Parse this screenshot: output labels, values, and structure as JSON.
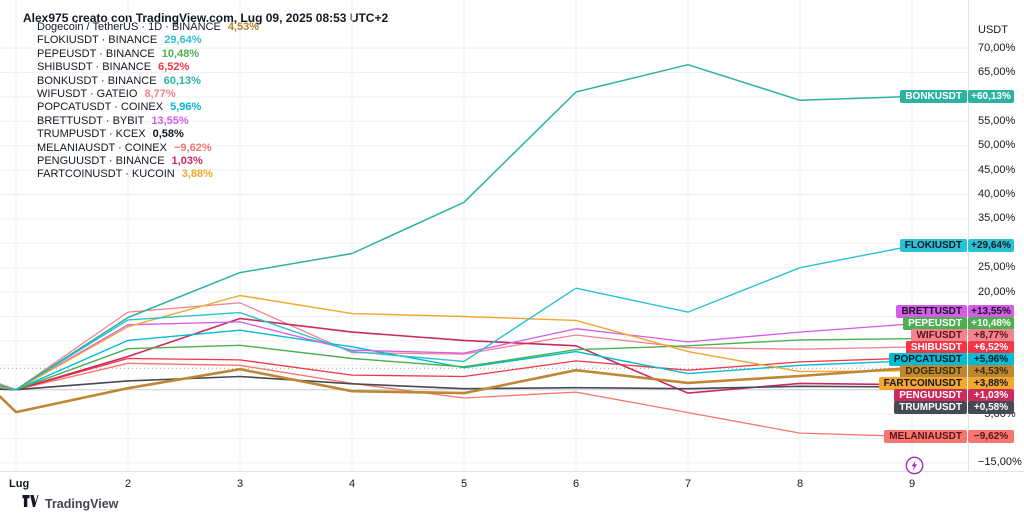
{
  "header": {
    "title": "Alex975 creato con TradingView.com, Lug 09, 2025 08:53 UTC+2"
  },
  "legend": [
    {
      "symbol": "Dogecoin / TetherUS · 1D · BINANCE",
      "change": "4,53%",
      "color": "#b8822b"
    },
    {
      "symbol": "FLOKIUSDT · BINANCE",
      "change": "29,64%",
      "color": "#2ac2d2"
    },
    {
      "symbol": "PEPEUSDT · BINANCE",
      "change": "10,48%",
      "color": "#4caf50"
    },
    {
      "symbol": "SHIBUSDT · BINANCE",
      "change": "6,52%",
      "color": "#f23645"
    },
    {
      "symbol": "BONKUSDT · BINANCE",
      "change": "60,13%",
      "color": "#2cb2a0"
    },
    {
      "symbol": "WIFUSDT · GATEIO",
      "change": "8,77%",
      "color": "#f2838f"
    },
    {
      "symbol": "POPCATUSDT · COINEX",
      "change": "5,96%",
      "color": "#00bcd4"
    },
    {
      "symbol": "BRETTUSDT · BYBIT",
      "change": "13,55%",
      "color": "#d45ce8"
    },
    {
      "symbol": "TRUMPUSDT · KCEX",
      "change": "0,58%",
      "color": "#131722"
    },
    {
      "symbol": "MELANIAUSDT · COINEX",
      "change": "−9,62%",
      "color": "#f5766e"
    },
    {
      "symbol": "PENGUUSDT · BINANCE",
      "change": "1,03%",
      "color": "#cb2b5c"
    },
    {
      "symbol": "FARTCOINUSDT · KUCOIN",
      "change": "3,88%",
      "color": "#f2a72e"
    }
  ],
  "chart_data": {
    "type": "line",
    "unit": "USDT",
    "x_categories": [
      "Lug",
      "2",
      "3",
      "4",
      "5",
      "6",
      "7",
      "8",
      "9"
    ],
    "ylim": [
      -17.5,
      74
    ],
    "y_gridlines": [
      70,
      65,
      60,
      55,
      50,
      45,
      40,
      35,
      30,
      25,
      20,
      15,
      10,
      5,
      0,
      -5,
      -10,
      -15
    ],
    "y_ticks_visible": [
      {
        "label": "70,00%",
        "value": 70
      },
      {
        "label": "65,00%",
        "value": 65
      },
      {
        "label": "55,00%",
        "value": 55
      },
      {
        "label": "50,00%",
        "value": 50
      },
      {
        "label": "45,00%",
        "value": 45
      },
      {
        "label": "40,00%",
        "value": 40
      },
      {
        "label": "35,00%",
        "value": 35
      },
      {
        "label": "25,00%",
        "value": 25
      },
      {
        "label": "20,00%",
        "value": 20
      },
      {
        "label": "−5,00%",
        "value": -5
      },
      {
        "label": "−15,00%",
        "value": -15
      }
    ],
    "zero_line_value": 0,
    "prev_close_line_value": 4.4,
    "series": [
      {
        "name": "MELANIAUSDT",
        "label": "−9,62%",
        "color": "#f5766e",
        "label_fg": "#5b1418",
        "width": 1.3,
        "pre": 0.2,
        "values": [
          0,
          5.4,
          5.0,
          1.3,
          -1.7,
          -0.5,
          -4.7,
          -8.9,
          -9.62
        ]
      },
      {
        "name": "WIFUSDT",
        "label": "+8,77%",
        "color": "#f2838f",
        "label_fg": "#5b1418",
        "width": 1.3,
        "pre": 1.2,
        "values": [
          0,
          15.9,
          17.8,
          7.6,
          7.3,
          11.2,
          8.6,
          8.3,
          8.77
        ]
      },
      {
        "name": "SHIBUSDT",
        "label": "+6,52%",
        "color": "#f23645",
        "label_fg": "#ffffff",
        "width": 1.3,
        "pre": 0.3,
        "values": [
          0,
          6.4,
          6.1,
          3.0,
          2.7,
          5.9,
          4.0,
          5.7,
          6.52
        ]
      },
      {
        "name": "PENGUUSDT",
        "label": "+1,03%",
        "color": "#cb2b5c",
        "label_fg": "#ffffff",
        "width": 1.6,
        "pre": 0.3,
        "values": [
          0,
          6.8,
          14.6,
          11.8,
          10.1,
          9.0,
          -0.7,
          1.3,
          1.03
        ]
      },
      {
        "name": "TRUMPUSDT",
        "label": "+0,58%",
        "color": "#474a54",
        "label_fg": "#ffffff",
        "width": 1.6,
        "pre": 0.1,
        "values": [
          0,
          1.8,
          2.7,
          1.2,
          0.2,
          0.4,
          0.2,
          0.7,
          0.58
        ]
      },
      {
        "name": "POPCATUSDT",
        "label": "+5,96%",
        "color": "#00bcd4",
        "label_fg": "#131722",
        "width": 1.4,
        "pre": 0.5,
        "values": [
          0,
          10.1,
          12.2,
          8.8,
          4.5,
          7.8,
          3.3,
          5.0,
          5.96
        ]
      },
      {
        "name": "PEPEUSDT",
        "label": "+10,48%",
        "color": "#4caf50",
        "label_fg": "#ffffff",
        "width": 1.4,
        "pre": 0.4,
        "values": [
          0,
          8.4,
          9.1,
          6.4,
          4.7,
          8.2,
          9.0,
          10.2,
          10.48
        ]
      },
      {
        "name": "BRETTUSDT",
        "label": "+13,55%",
        "color": "#d45ce8",
        "label_fg": "#131722",
        "width": 1.3,
        "pre": 0.7,
        "values": [
          0,
          13.3,
          13.9,
          8.1,
          7.5,
          12.5,
          9.8,
          11.8,
          13.55
        ]
      },
      {
        "name": "FARTCOINUSDT",
        "label": "+3,88%",
        "color": "#f2a72e",
        "label_fg": "#131722",
        "width": 1.4,
        "pre": 0.6,
        "values": [
          0,
          12.9,
          19.3,
          15.6,
          15.0,
          14.2,
          7.8,
          3.7,
          3.88
        ]
      },
      {
        "name": "FLOKIUSDT",
        "label": "+29,64%",
        "color": "#2ac2d2",
        "label_fg": "#131722",
        "width": 1.4,
        "pre": 0.8,
        "values": [
          0,
          14.3,
          15.8,
          7.8,
          5.8,
          20.8,
          15.9,
          25.0,
          29.64
        ]
      },
      {
        "name": "BONKUSDT",
        "label": "+60,13%",
        "color": "#2cb2a0",
        "label_fg": "#ffffff",
        "width": 1.5,
        "pre": 0.9,
        "values": [
          0,
          14.8,
          24.0,
          27.9,
          38.4,
          61.0,
          66.6,
          59.3,
          60.13
        ]
      },
      {
        "name": "DOGEUSDT",
        "label": "+4,53%",
        "color": "#bd8733",
        "label_fg": "#3d2b05",
        "width": 2.6,
        "pre": -1.4,
        "values": [
          -4.6,
          0.3,
          4.2,
          -0.3,
          -0.7,
          4.0,
          1.4,
          2.8,
          4.53
        ],
        "end_dot": true
      }
    ]
  },
  "footer": {
    "brand": "TradingView"
  },
  "icons": {
    "bottom_right": "lightning-bolt-icon",
    "brand": "tradingview-logo-icon"
  },
  "palette": {
    "grid": "#eef0f3",
    "zero_line": "#d1d4dc",
    "prev_close_line": "#9a9ea8",
    "axis_border": "#e0e3eb"
  }
}
